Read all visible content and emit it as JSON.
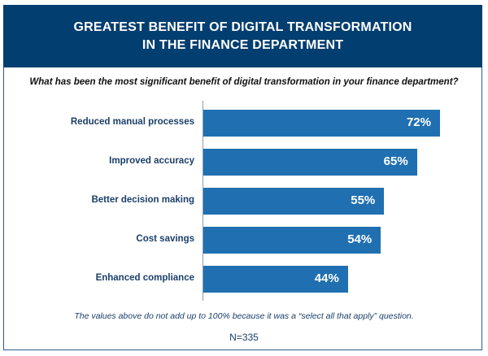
{
  "chart_data": {
    "type": "bar",
    "orientation": "horizontal",
    "title": "GREATEST BENEFIT OF DIGITAL TRANSFORMATION IN THE FINANCE DEPARTMENT",
    "title_lines": [
      "GREATEST BENEFIT OF DIGITAL TRANSFORMATION",
      "IN THE FINANCE DEPARTMENT"
    ],
    "subtitle": "What has been the most significant benefit of digital transformation in your finance department?",
    "categories": [
      "Reduced manual processes",
      "Improved accuracy",
      "Better decision making",
      "Cost savings",
      "Enhanced compliance"
    ],
    "values": [
      72,
      65,
      55,
      54,
      44
    ],
    "value_labels": [
      "72%",
      "65%",
      "55%",
      "54%",
      "44%"
    ],
    "unit": "%",
    "xlim": [
      0,
      72
    ],
    "grid": false,
    "colors": {
      "header": "#023e70",
      "bar": "#2070b1",
      "label": "#1b3f6a"
    },
    "note": "The values above do not add up to 100% because it was a “select all that apply” question.",
    "sample": "N=335"
  }
}
